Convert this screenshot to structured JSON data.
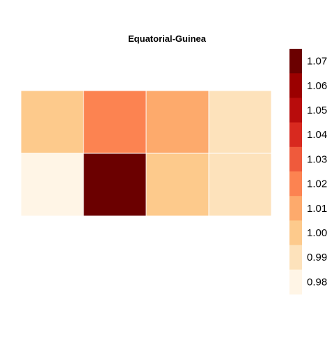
{
  "chart_data": {
    "type": "heatmap",
    "title": "Equatorial-Guinea",
    "xlabel": "",
    "ylabel": "",
    "grid": false,
    "legend_position": "right",
    "rows": 2,
    "cols": 4,
    "values": [
      [
        1.0,
        1.02,
        1.01,
        0.99
      ],
      [
        0.98,
        1.07,
        1.0,
        0.99
      ]
    ],
    "scale": {
      "min": 0.975,
      "max": 1.075,
      "ticks": [
        0.98,
        0.99,
        1.0,
        1.01,
        1.02,
        1.03,
        1.04,
        1.05,
        1.06,
        1.07
      ],
      "tick_labels": [
        "0.98",
        "0.99",
        "1.00",
        "1.01",
        "1.02",
        "1.03",
        "1.04",
        "1.05",
        "1.06",
        "1.07"
      ],
      "colors": [
        "#fff5e6",
        "#fde2bb",
        "#fdca8c",
        "#fdaa6c",
        "#fc8351",
        "#ef5a3c",
        "#d8291f",
        "#b80c0c",
        "#9b0000",
        "#6b0000"
      ]
    }
  }
}
